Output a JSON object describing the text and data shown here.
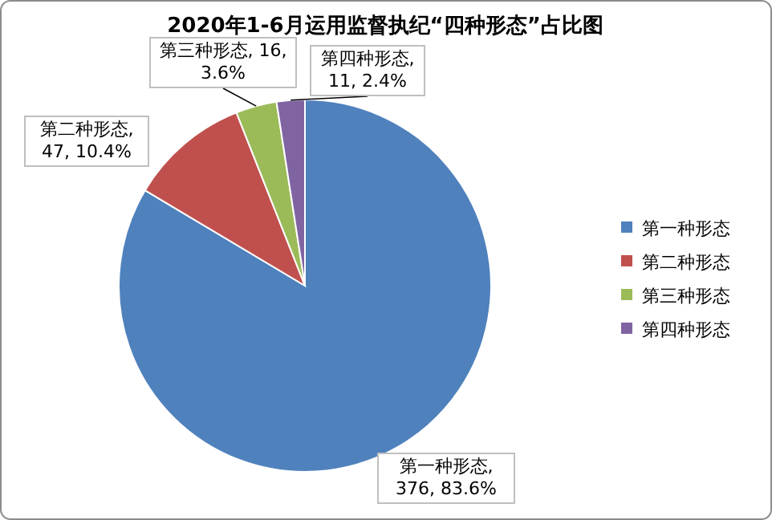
{
  "chart_data": {
    "type": "pie",
    "title": "2020年1-6月运用监督执纪“四种形态”占比图",
    "categories": [
      "第一种形态",
      "第二种形态",
      "第三种形态",
      "第四种形态"
    ],
    "values": [
      376,
      47,
      16,
      11
    ],
    "colors": [
      "#4f81bd",
      "#c0504d",
      "#9bbb59",
      "#8064a2"
    ],
    "value_labels": [
      "第一种形态, 376, 83.6%",
      "第二种形态, 47, 10.4%",
      "第三种形态, 16, 3.6%",
      "第四种形态, 11, 2.4%"
    ],
    "legend": "right"
  }
}
